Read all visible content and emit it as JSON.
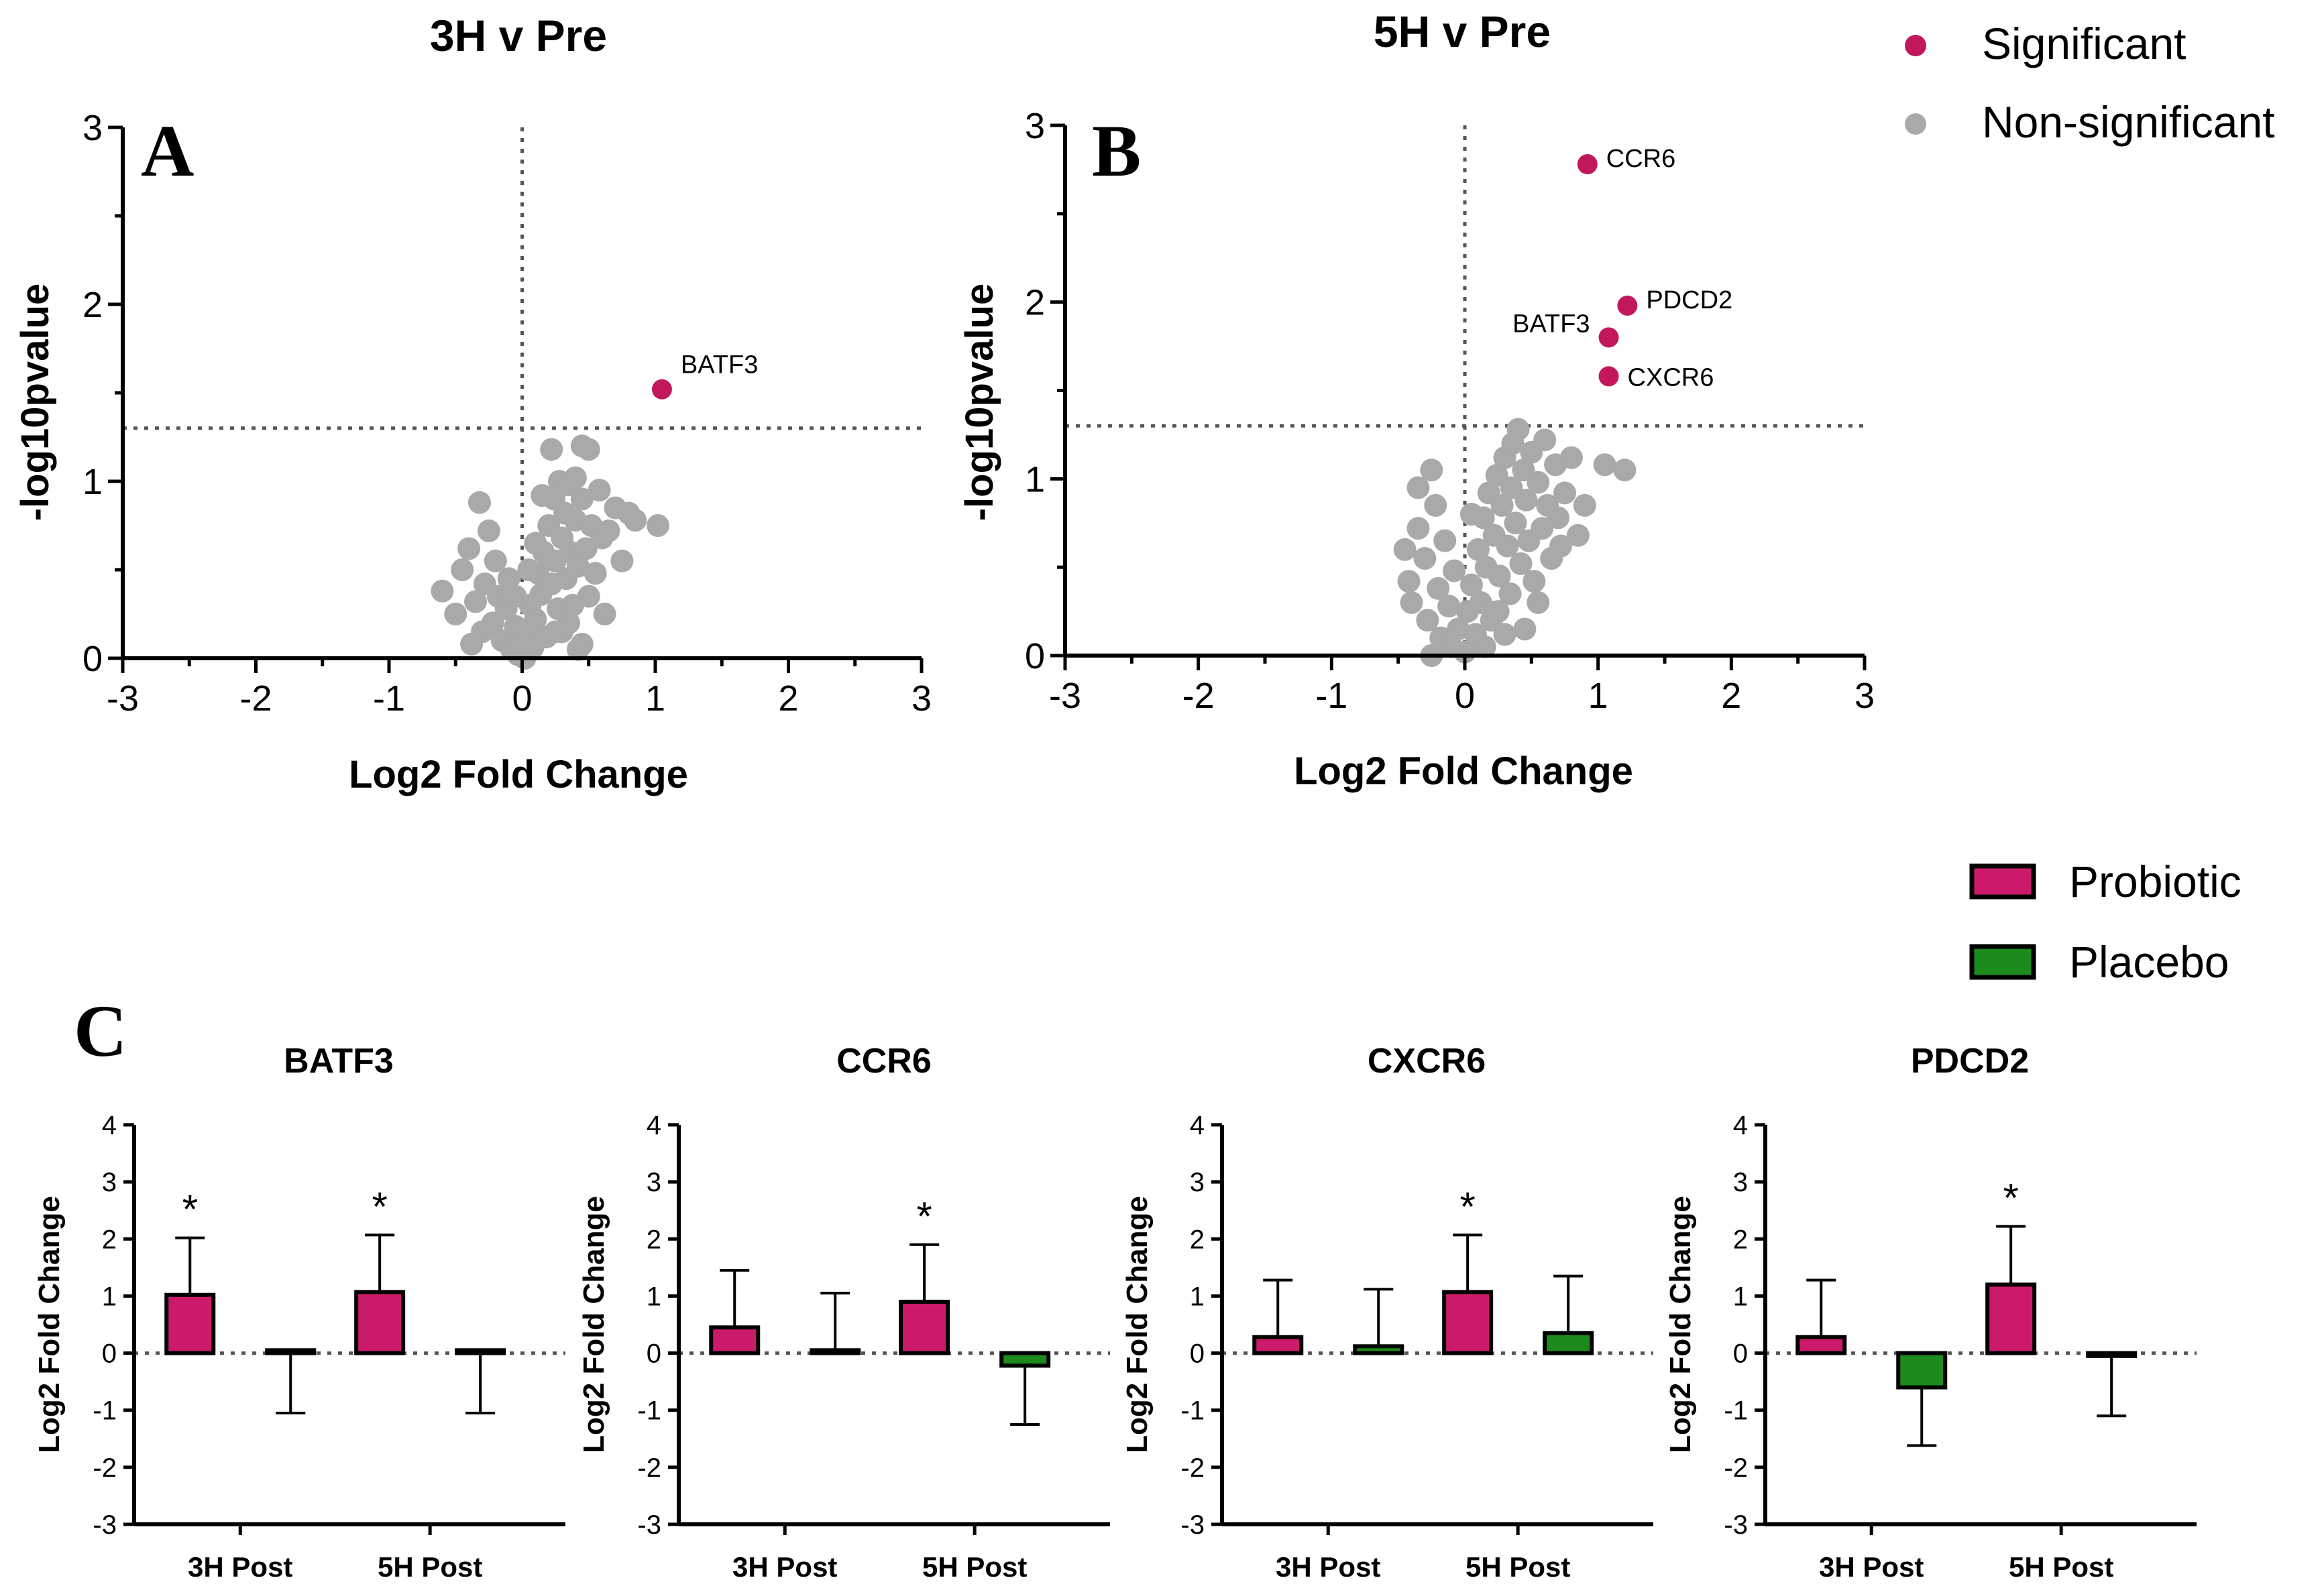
{
  "colors": {
    "significant": "#c2185b",
    "nonsignificant": "#a9a9a9",
    "probiotic": "#cc1a6b",
    "placebo": "#1d8a1d"
  },
  "volcano_legend": {
    "significant": "Significant",
    "nonsignificant": "Non-significant"
  },
  "bar_legend": {
    "probiotic": "Probiotic",
    "placebo": "Placebo"
  },
  "chart_data": [
    {
      "type": "scatter",
      "panel": "A",
      "title": "3H v Pre",
      "xlabel": "Log2 Fold Change",
      "ylabel": "-log10pvalue",
      "xlim": [
        -3,
        3
      ],
      "ylim": [
        0,
        3
      ],
      "xticks": [
        "-3",
        "-2",
        "-1",
        "0",
        "1",
        "2",
        "3"
      ],
      "yticks": [
        "0",
        "1",
        "2",
        "3"
      ],
      "threshold_y": 1.3,
      "significant": [
        {
          "x": 1.05,
          "y": 1.52,
          "label": "BATF3"
        }
      ],
      "nonsignificant": [
        [
          -0.6,
          0.38
        ],
        [
          -0.5,
          0.25
        ],
        [
          -0.45,
          0.5
        ],
        [
          -0.4,
          0.62
        ],
        [
          -0.35,
          0.32
        ],
        [
          -0.32,
          0.88
        ],
        [
          -0.3,
          0.15
        ],
        [
          -0.28,
          0.42
        ],
        [
          -0.25,
          0.72
        ],
        [
          -0.22,
          0.2
        ],
        [
          -0.2,
          0.55
        ],
        [
          -0.18,
          0.35
        ],
        [
          -0.15,
          0.1
        ],
        [
          -0.12,
          0.28
        ],
        [
          -0.1,
          0.45
        ],
        [
          -0.08,
          0.05
        ],
        [
          -0.05,
          0.18
        ],
        [
          -0.03,
          0.02
        ],
        [
          0.0,
          0.08
        ],
        [
          0.02,
          0.0
        ],
        [
          0.04,
          0.15
        ],
        [
          0.06,
          0.3
        ],
        [
          0.08,
          0.06
        ],
        [
          0.1,
          0.22
        ],
        [
          0.12,
          0.48
        ],
        [
          0.14,
          0.36
        ],
        [
          0.16,
          0.6
        ],
        [
          0.18,
          0.12
        ],
        [
          0.2,
          0.75
        ],
        [
          0.22,
          0.42
        ],
        [
          0.24,
          0.9
        ],
        [
          0.25,
          0.55
        ],
        [
          0.27,
          0.28
        ],
        [
          0.28,
          1.0
        ],
        [
          0.3,
          0.68
        ],
        [
          0.3,
          0.15
        ],
        [
          0.32,
          0.82
        ],
        [
          0.33,
          0.45
        ],
        [
          0.35,
          0.98
        ],
        [
          0.36,
          0.6
        ],
        [
          0.38,
          0.3
        ],
        [
          0.4,
          0.78
        ],
        [
          0.4,
          1.02
        ],
        [
          0.42,
          0.52
        ],
        [
          0.45,
          0.9
        ],
        [
          0.45,
          0.08
        ],
        [
          0.48,
          0.62
        ],
        [
          0.5,
          1.18
        ],
        [
          0.5,
          0.35
        ],
        [
          0.52,
          0.75
        ],
        [
          0.55,
          0.48
        ],
        [
          0.58,
          0.95
        ],
        [
          0.6,
          0.68
        ],
        [
          0.62,
          0.25
        ],
        [
          0.65,
          0.72
        ],
        [
          0.7,
          0.85
        ],
        [
          0.75,
          0.55
        ],
        [
          0.8,
          0.82
        ],
        [
          0.85,
          0.78
        ],
        [
          0.22,
          1.18
        ],
        [
          0.45,
          1.2
        ],
        [
          0.1,
          0.65
        ],
        [
          0.15,
          0.92
        ],
        [
          0.35,
          0.2
        ],
        [
          0.42,
          0.05
        ],
        [
          1.02,
          0.75
        ],
        [
          -0.38,
          0.08
        ],
        [
          -0.05,
          0.35
        ],
        [
          0.05,
          0.5
        ],
        [
          0.25,
          0.15
        ]
      ]
    },
    {
      "type": "scatter",
      "panel": "B",
      "title": "5H v Pre",
      "xlabel": "Log2 Fold Change",
      "ylabel": "-log10pvalue",
      "xlim": [
        -3,
        3
      ],
      "ylim": [
        0,
        3
      ],
      "xticks": [
        "-3",
        "-2",
        "-1",
        "0",
        "1",
        "2",
        "3"
      ],
      "yticks": [
        "0",
        "1",
        "2",
        "3"
      ],
      "threshold_y": 1.3,
      "significant": [
        {
          "x": 0.92,
          "y": 2.78,
          "label": "CCR6"
        },
        {
          "x": 1.22,
          "y": 1.98,
          "label": "PDCD2"
        },
        {
          "x": 1.08,
          "y": 1.8,
          "label": "BATF3"
        },
        {
          "x": 1.08,
          "y": 1.58,
          "label": "CXCR6"
        }
      ],
      "nonsignificant": [
        [
          -0.45,
          0.6
        ],
        [
          -0.42,
          0.42
        ],
        [
          -0.4,
          0.3
        ],
        [
          -0.35,
          0.72
        ],
        [
          -0.3,
          0.55
        ],
        [
          -0.28,
          0.2
        ],
        [
          -0.25,
          1.05
        ],
        [
          -0.22,
          0.85
        ],
        [
          -0.2,
          0.38
        ],
        [
          -0.18,
          0.1
        ],
        [
          -0.15,
          0.65
        ],
        [
          -0.12,
          0.28
        ],
        [
          -0.1,
          0.05
        ],
        [
          -0.08,
          0.48
        ],
        [
          -0.05,
          0.15
        ],
        [
          0.0,
          0.02
        ],
        [
          0.02,
          0.25
        ],
        [
          0.05,
          0.4
        ],
        [
          0.08,
          0.12
        ],
        [
          0.1,
          0.6
        ],
        [
          0.12,
          0.3
        ],
        [
          0.14,
          0.78
        ],
        [
          0.16,
          0.5
        ],
        [
          0.18,
          0.92
        ],
        [
          0.2,
          0.2
        ],
        [
          0.22,
          0.68
        ],
        [
          0.24,
          1.02
        ],
        [
          0.26,
          0.45
        ],
        [
          0.28,
          0.85
        ],
        [
          0.3,
          1.12
        ],
        [
          0.32,
          0.62
        ],
        [
          0.34,
          0.35
        ],
        [
          0.35,
          0.95
        ],
        [
          0.36,
          1.2
        ],
        [
          0.38,
          0.75
        ],
        [
          0.4,
          1.28
        ],
        [
          0.42,
          0.52
        ],
        [
          0.44,
          1.05
        ],
        [
          0.46,
          0.88
        ],
        [
          0.48,
          0.65
        ],
        [
          0.5,
          1.15
        ],
        [
          0.52,
          0.42
        ],
        [
          0.55,
          0.98
        ],
        [
          0.58,
          0.72
        ],
        [
          0.6,
          1.22
        ],
        [
          0.62,
          0.85
        ],
        [
          0.65,
          0.55
        ],
        [
          0.68,
          1.08
        ],
        [
          0.7,
          0.78
        ],
        [
          0.72,
          0.62
        ],
        [
          0.75,
          0.92
        ],
        [
          0.8,
          1.12
        ],
        [
          0.85,
          0.68
        ],
        [
          0.9,
          0.85
        ],
        [
          1.05,
          1.08
        ],
        [
          1.2,
          1.05
        ],
        [
          -0.25,
          0.0
        ],
        [
          0.15,
          0.05
        ],
        [
          0.25,
          0.25
        ],
        [
          0.45,
          0.15
        ],
        [
          -0.35,
          0.95
        ],
        [
          0.05,
          0.8
        ],
        [
          0.55,
          0.3
        ],
        [
          0.3,
          0.12
        ]
      ]
    },
    {
      "type": "bar",
      "panel": "C",
      "title": "BATF3",
      "categories": [
        "3H Post",
        "5H Post"
      ],
      "ylabel": "Log2 Fold Change",
      "ylim": [
        -3,
        4
      ],
      "yticks": [
        "-3",
        "-2",
        "-1",
        "0",
        "1",
        "2",
        "3",
        "4"
      ],
      "series": [
        {
          "name": "Probiotic",
          "values": [
            1.02,
            1.07
          ],
          "errors": [
            1.0,
            1.0
          ],
          "error_dir": [
            1,
            1
          ]
        },
        {
          "name": "Placebo",
          "values": [
            0.05,
            0.05
          ],
          "errors": [
            1.05,
            1.05
          ],
          "error_dir": [
            -1,
            -1
          ]
        }
      ],
      "stars": [
        "*",
        "*"
      ]
    },
    {
      "type": "bar",
      "panel": "C",
      "title": "CCR6",
      "categories": [
        "3H Post",
        "5H Post"
      ],
      "ylabel": "Log2 Fold Change",
      "ylim": [
        -3,
        4
      ],
      "yticks": [
        "-3",
        "-2",
        "-1",
        "0",
        "1",
        "2",
        "3",
        "4"
      ],
      "series": [
        {
          "name": "Probiotic",
          "values": [
            0.45,
            0.9
          ],
          "errors": [
            1.0,
            1.0
          ],
          "error_dir": [
            1,
            1
          ]
        },
        {
          "name": "Placebo",
          "values": [
            0.05,
            -0.22
          ],
          "errors": [
            1.0,
            1.03
          ],
          "error_dir": [
            1,
            -1
          ]
        }
      ],
      "stars": [
        "",
        "*"
      ]
    },
    {
      "type": "bar",
      "panel": "C",
      "title": "CXCR6",
      "categories": [
        "3H Post",
        "5H Post"
      ],
      "ylabel": "Log2 Fold Change",
      "ylim": [
        -3,
        4
      ],
      "yticks": [
        "-3",
        "-2",
        "-1",
        "0",
        "1",
        "2",
        "3",
        "4"
      ],
      "series": [
        {
          "name": "Probiotic",
          "values": [
            0.28,
            1.07
          ],
          "errors": [
            1.0,
            1.0
          ],
          "error_dir": [
            1,
            1
          ]
        },
        {
          "name": "Placebo",
          "values": [
            0.12,
            0.35
          ],
          "errors": [
            1.0,
            1.0
          ],
          "error_dir": [
            1,
            1
          ]
        }
      ],
      "stars": [
        "",
        "*"
      ]
    },
    {
      "type": "bar",
      "panel": "C",
      "title": "PDCD2",
      "categories": [
        "3H Post",
        "5H Post"
      ],
      "ylabel": "Log2 Fold Change",
      "ylim": [
        -3,
        4
      ],
      "yticks": [
        "-3",
        "-2",
        "-1",
        "0",
        "1",
        "2",
        "3",
        "4"
      ],
      "series": [
        {
          "name": "Probiotic",
          "values": [
            0.28,
            1.2
          ],
          "errors": [
            1.0,
            1.02
          ],
          "error_dir": [
            1,
            1
          ]
        },
        {
          "name": "Placebo",
          "values": [
            -0.6,
            -0.05
          ],
          "errors": [
            1.02,
            1.05
          ],
          "error_dir": [
            -1,
            -1
          ]
        }
      ],
      "stars": [
        "",
        "*"
      ]
    }
  ],
  "panel_letters": {
    "a": "A",
    "b": "B",
    "c": "C"
  }
}
